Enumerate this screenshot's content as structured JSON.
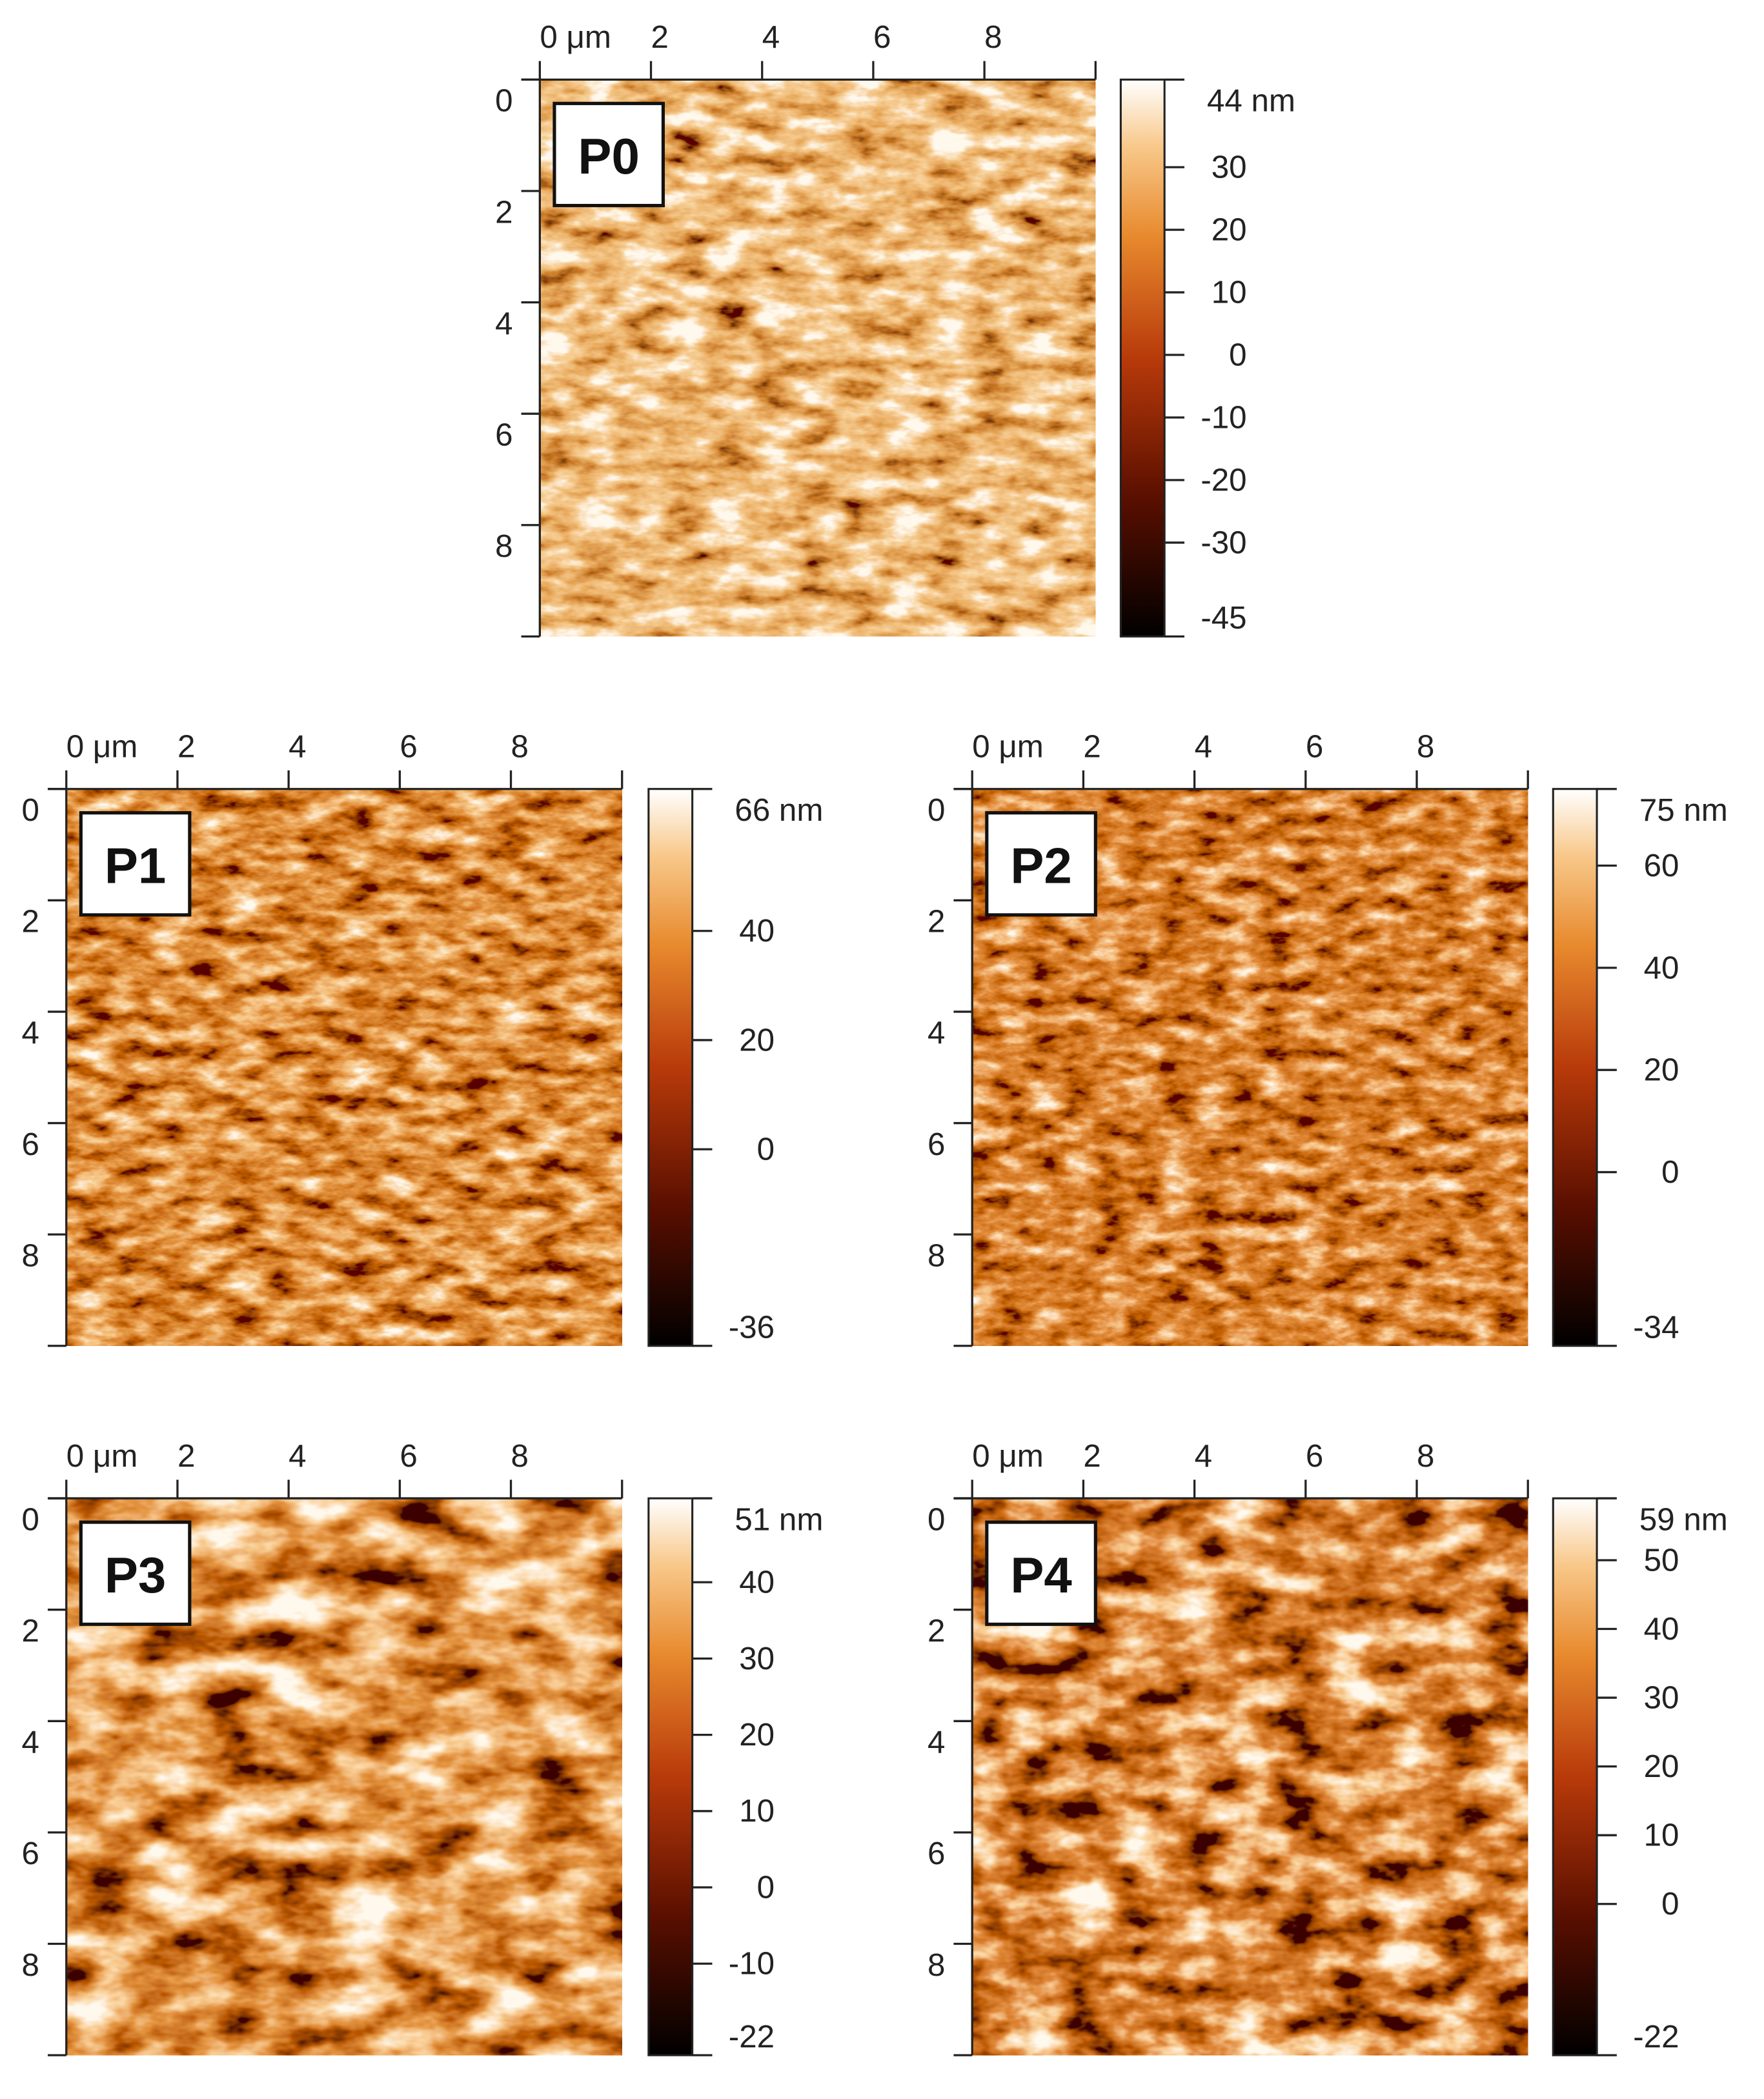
{
  "panels": [
    {
      "label": "P0",
      "xlim": [
        0,
        10
      ],
      "ylim": [
        0,
        10
      ],
      "xticks": [
        {
          "value": 0,
          "label": "0 μm"
        },
        2,
        4,
        6,
        8
      ],
      "yticks": [
        0,
        2,
        4,
        6,
        8
      ],
      "colorbar": {
        "lim": [
          -45,
          44
        ],
        "ticks": [
          {
            "value": 44,
            "label": "44 nm"
          },
          30,
          20,
          10,
          0,
          -10,
          -20,
          -30,
          -45
        ]
      }
    },
    {
      "label": "P1",
      "xlim": [
        0,
        10
      ],
      "ylim": [
        0,
        10
      ],
      "xticks": [
        {
          "value": 0,
          "label": "0 μm"
        },
        2,
        4,
        6,
        8
      ],
      "yticks": [
        0,
        2,
        4,
        6,
        8
      ],
      "colorbar": {
        "lim": [
          -36,
          66
        ],
        "ticks": [
          {
            "value": 66,
            "label": "66 nm"
          },
          40,
          20,
          0,
          -36
        ]
      }
    },
    {
      "label": "P2",
      "xlim": [
        0,
        10
      ],
      "ylim": [
        0,
        10
      ],
      "xticks": [
        {
          "value": 0,
          "label": "0 μm"
        },
        2,
        4,
        6,
        8
      ],
      "yticks": [
        0,
        2,
        4,
        6,
        8
      ],
      "colorbar": {
        "lim": [
          -34,
          75
        ],
        "ticks": [
          {
            "value": 75,
            "label": "75 nm"
          },
          60,
          40,
          20,
          0,
          -34
        ]
      }
    },
    {
      "label": "P3",
      "xlim": [
        0,
        10
      ],
      "ylim": [
        0,
        10
      ],
      "xticks": [
        {
          "value": 0,
          "label": "0 μm"
        },
        2,
        4,
        6,
        8
      ],
      "yticks": [
        0,
        2,
        4,
        6,
        8
      ],
      "colorbar": {
        "lim": [
          -22,
          51
        ],
        "ticks": [
          {
            "value": 51,
            "label": "51 nm"
          },
          40,
          30,
          20,
          10,
          0,
          -10,
          -22
        ]
      }
    },
    {
      "label": "P4",
      "xlim": [
        0,
        10
      ],
      "ylim": [
        0,
        10
      ],
      "xticks": [
        {
          "value": 0,
          "label": "0 μm"
        },
        2,
        4,
        6,
        8
      ],
      "yticks": [
        0,
        2,
        4,
        6,
        8
      ],
      "colorbar": {
        "lim": [
          -22,
          59
        ],
        "ticks": [
          {
            "value": 59,
            "label": "59 nm"
          },
          50,
          40,
          30,
          20,
          10,
          0,
          -22
        ]
      }
    }
  ]
}
